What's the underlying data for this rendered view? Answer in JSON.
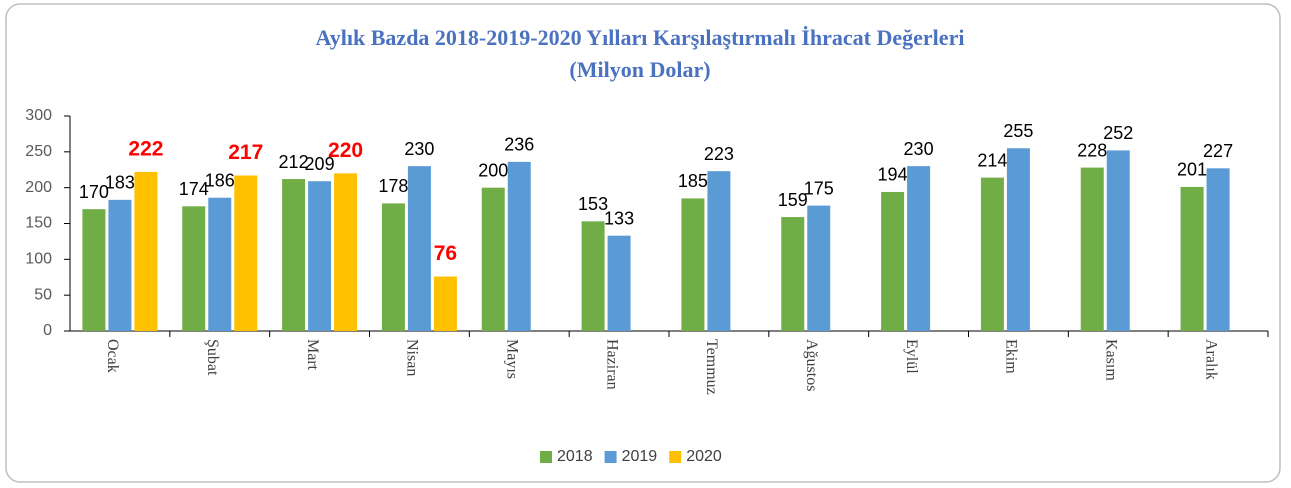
{
  "chart_data": {
    "type": "bar",
    "title": "Aylık Bazda 2018-2019-2020 Yılları Karşılaştırmalı İhracat Değerleri",
    "subtitle": "(Milyon Dolar)",
    "categories": [
      "Ocak",
      "Şubat",
      "Mart",
      "Nisan",
      "Mayıs",
      "Haziran",
      "Temmuz",
      "Ağustos",
      "Eylül",
      "Ekim",
      "Kasım",
      "Aralık"
    ],
    "series": [
      {
        "name": "2018",
        "color": "#70ad47",
        "values": [
          170,
          174,
          212,
          178,
          200,
          153,
          185,
          159,
          194,
          214,
          228,
          201
        ]
      },
      {
        "name": "2019",
        "color": "#5b9bd5",
        "values": [
          183,
          186,
          209,
          230,
          236,
          133,
          223,
          175,
          230,
          255,
          252,
          227
        ]
      },
      {
        "name": "2020",
        "color": "#ffc000",
        "values": [
          222,
          217,
          220,
          76,
          null,
          null,
          null,
          null,
          null,
          null,
          null,
          null
        ]
      }
    ],
    "ylim": [
      0,
      300
    ],
    "yticks": [
      0,
      50,
      100,
      150,
      200,
      250,
      300
    ],
    "legend": "bottom"
  }
}
